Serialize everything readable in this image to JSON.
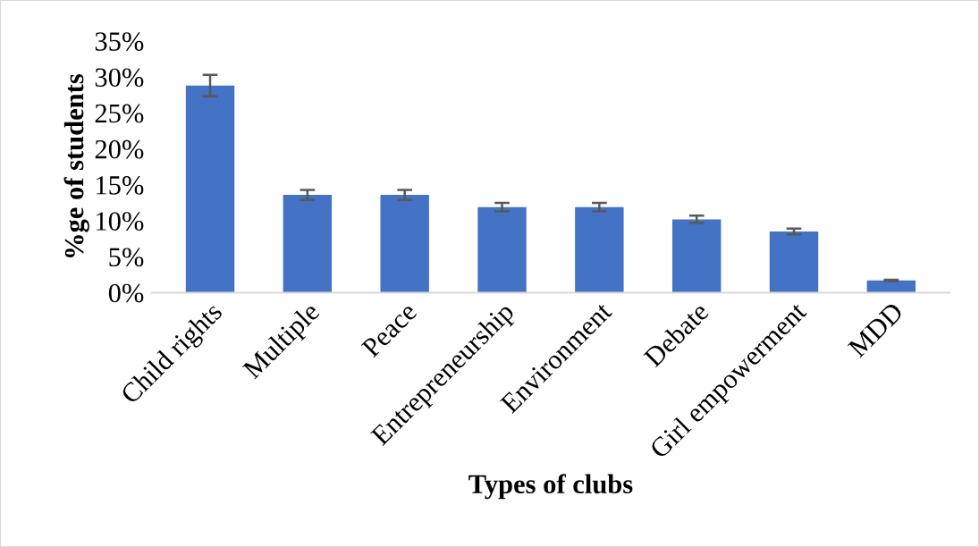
{
  "chart_data": {
    "type": "bar",
    "xlabel": "Types of clubs",
    "ylabel": "%ge of students",
    "categories": [
      "Child rights",
      "Multiple",
      "Peace",
      "Entrepreneurship",
      "Environment",
      "Debate",
      "Girl empowerment",
      "MDD"
    ],
    "values": [
      28.8,
      13.6,
      13.6,
      11.9,
      11.9,
      10.2,
      8.5,
      1.7
    ],
    "errors": [
      1.5,
      0.7,
      0.7,
      0.6,
      0.6,
      0.5,
      0.4,
      0.1
    ],
    "color": "#4472c4",
    "ylim": [
      0,
      35
    ],
    "yticks": [
      {
        "value": 0,
        "label": "0%"
      },
      {
        "value": 5,
        "label": "5%"
      },
      {
        "value": 10,
        "label": "10%"
      },
      {
        "value": 15,
        "label": "15%"
      },
      {
        "value": 20,
        "label": "20%"
      },
      {
        "value": 25,
        "label": "25%"
      },
      {
        "value": 30,
        "label": "30%"
      },
      {
        "value": 35,
        "label": "35%"
      }
    ],
    "grid": false,
    "legend": false
  }
}
